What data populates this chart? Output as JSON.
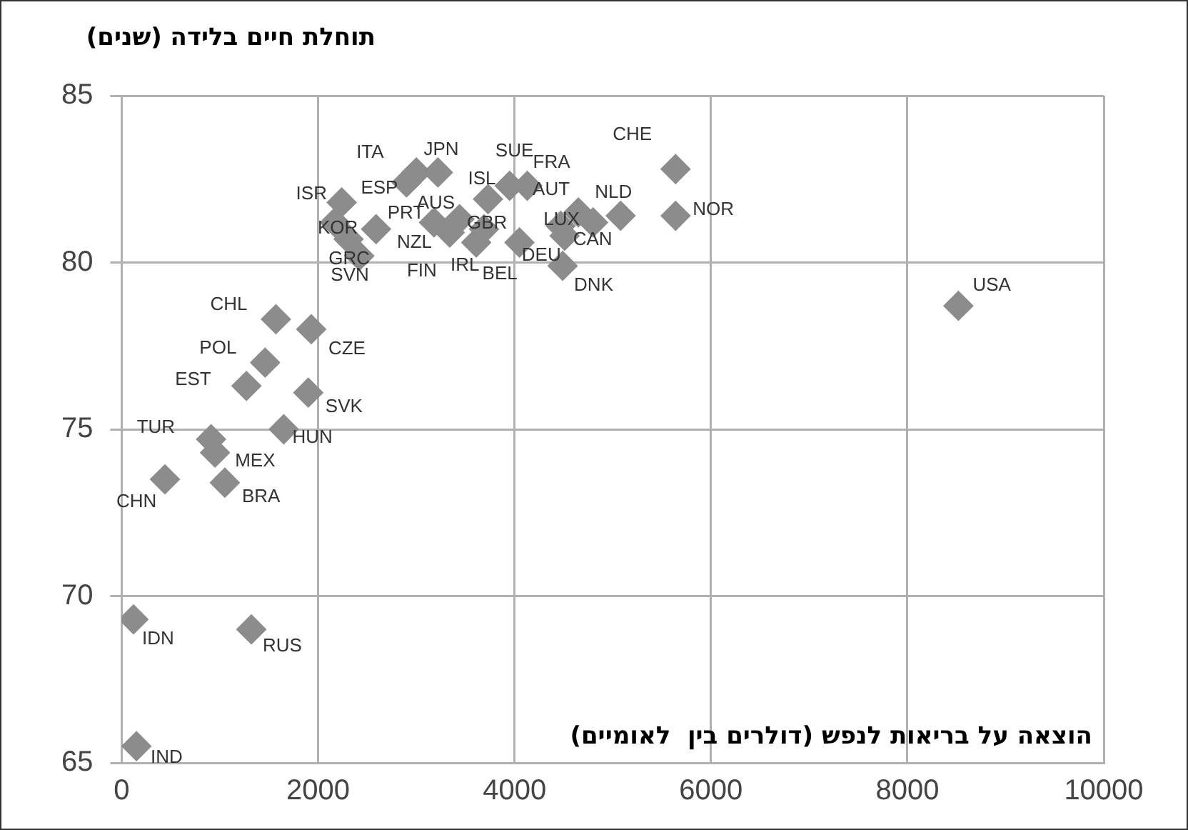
{
  "chart_data": {
    "type": "scatter",
    "ylabel": "תוחלת חיים בלידה (שנים)",
    "xlabel": "הוצאה על בריאות לנפש (דולרים בין  לאומיים)",
    "series": [
      {
        "name": "ITA",
        "color": "#8c8c8c",
        "x": [
          3000
        ],
        "values": [
          82.7
        ]
      },
      {
        "name": "JPN",
        "color": "#8c8c8c",
        "x": [
          3220
        ],
        "values": [
          82.7
        ]
      },
      {
        "name": "ISR",
        "color": "#8c8c8c",
        "x": [
          2240
        ],
        "values": [
          81.8
        ]
      },
      {
        "name": "ESP",
        "color": "#8c8c8c",
        "x": [
          2900
        ],
        "values": [
          82.4
        ]
      },
      {
        "name": "KOR",
        "color": "#8c8c8c",
        "x": [
          2170
        ],
        "values": [
          81.2
        ]
      },
      {
        "name": "GRC",
        "color": "#8c8c8c",
        "x": [
          2310
        ],
        "values": [
          80.7
        ]
      },
      {
        "name": "PRT",
        "color": "#8c8c8c",
        "x": [
          2590
        ],
        "values": [
          81.0
        ]
      },
      {
        "name": "SVN",
        "color": "#8c8c8c",
        "x": [
          2420
        ],
        "values": [
          80.2
        ]
      },
      {
        "name": "NZL",
        "color": "#8c8c8c",
        "x": [
          3180
        ],
        "values": [
          81.2
        ]
      },
      {
        "name": "AUS",
        "color": "#8c8c8c",
        "x": [
          3440
        ],
        "values": [
          81.3
        ]
      },
      {
        "name": "FIN",
        "color": "#8c8c8c",
        "x": [
          3340
        ],
        "values": [
          80.9
        ]
      },
      {
        "name": "ISL",
        "color": "#8c8c8c",
        "x": [
          3730
        ],
        "values": [
          81.9
        ]
      },
      {
        "name": "SUE",
        "color": "#8c8c8c",
        "x": [
          3950
        ],
        "values": [
          82.3
        ]
      },
      {
        "name": "FRA",
        "color": "#8c8c8c",
        "x": [
          4130
        ],
        "values": [
          82.3
        ]
      },
      {
        "name": "GBR",
        "color": "#8c8c8c",
        "x": [
          3690
        ],
        "values": [
          81.0
        ]
      },
      {
        "name": "IRL",
        "color": "#8c8c8c",
        "x": [
          3610
        ],
        "values": [
          80.6
        ]
      },
      {
        "name": "BEL",
        "color": "#8c8c8c",
        "x": [
          4050
        ],
        "values": [
          80.6
        ]
      },
      {
        "name": "LUX",
        "color": "#8c8c8c",
        "x": [
          4470
        ],
        "values": [
          81.1
        ]
      },
      {
        "name": "DEU",
        "color": "#8c8c8c",
        "x": [
          4510
        ],
        "values": [
          80.8
        ]
      },
      {
        "name": "AUT",
        "color": "#8c8c8c",
        "x": [
          4650
        ],
        "values": [
          81.5
        ]
      },
      {
        "name": "CAN",
        "color": "#8c8c8c",
        "x": [
          4800
        ],
        "values": [
          81.2
        ]
      },
      {
        "name": "NLD",
        "color": "#8c8c8c",
        "x": [
          5080
        ],
        "values": [
          81.4
        ]
      },
      {
        "name": "DNK",
        "color": "#8c8c8c",
        "x": [
          4490
        ],
        "values": [
          79.9
        ]
      },
      {
        "name": "CHE",
        "color": "#8c8c8c",
        "x": [
          5640
        ],
        "values": [
          82.8
        ]
      },
      {
        "name": "NOR",
        "color": "#8c8c8c",
        "x": [
          5640
        ],
        "values": [
          81.4
        ]
      },
      {
        "name": "USA",
        "color": "#8c8c8c",
        "x": [
          8520
        ],
        "values": [
          78.7
        ]
      },
      {
        "name": "CHL",
        "color": "#8c8c8c",
        "x": [
          1570
        ],
        "values": [
          78.3
        ]
      },
      {
        "name": "CZE",
        "color": "#8c8c8c",
        "x": [
          1930
        ],
        "values": [
          78.0
        ]
      },
      {
        "name": "POL",
        "color": "#8c8c8c",
        "x": [
          1460
        ],
        "values": [
          77.0
        ]
      },
      {
        "name": "EST",
        "color": "#8c8c8c",
        "x": [
          1270
        ],
        "values": [
          76.3
        ]
      },
      {
        "name": "SVK",
        "color": "#8c8c8c",
        "x": [
          1900
        ],
        "values": [
          76.1
        ]
      },
      {
        "name": "HUN",
        "color": "#8c8c8c",
        "x": [
          1650
        ],
        "values": [
          75.0
        ]
      },
      {
        "name": "TUR",
        "color": "#8c8c8c",
        "x": [
          910
        ],
        "values": [
          74.7
        ]
      },
      {
        "name": "MEX",
        "color": "#8c8c8c",
        "x": [
          950
        ],
        "values": [
          74.3
        ]
      },
      {
        "name": "BRA",
        "color": "#8c8c8c",
        "x": [
          1050
        ],
        "values": [
          73.4
        ]
      },
      {
        "name": "CHN",
        "color": "#8c8c8c",
        "x": [
          440
        ],
        "values": [
          73.5
        ]
      },
      {
        "name": "IDN",
        "color": "#8c8c8c",
        "x": [
          120
        ],
        "values": [
          69.3
        ]
      },
      {
        "name": "RUS",
        "color": "#8c8c8c",
        "x": [
          1320
        ],
        "values": [
          69.0
        ]
      },
      {
        "name": "IND",
        "color": "#8c8c8c",
        "x": [
          150
        ],
        "values": [
          65.5
        ]
      }
    ],
    "marker": "diamond",
    "grid": true,
    "xlim": [
      0,
      10000
    ],
    "xticks": [
      0,
      2000,
      4000,
      6000,
      8000,
      10000
    ],
    "ylim": [
      65,
      85
    ],
    "yticks": [
      65,
      70,
      75,
      80,
      85
    ]
  }
}
